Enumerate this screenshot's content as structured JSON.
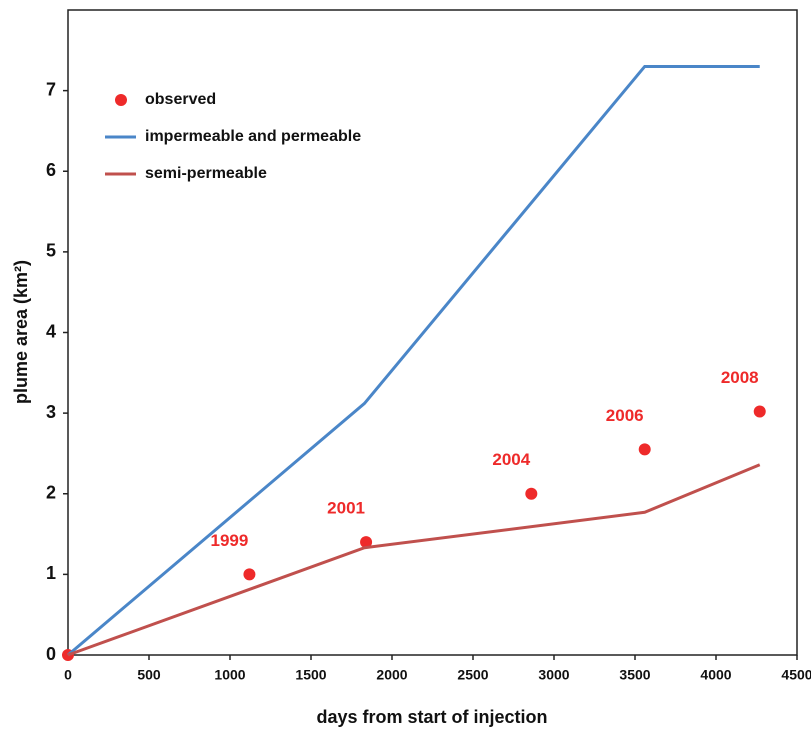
{
  "chart_data": {
    "type": "line",
    "xlabel": "days from start of injection",
    "ylabel": "plume area (km²)",
    "xlim": [
      0,
      4500
    ],
    "ylim": [
      0,
      8
    ],
    "xticks": [
      0,
      500,
      1000,
      1500,
      2000,
      2500,
      3000,
      3500,
      4000,
      {
        "value": 4500,
        "label": "4500"
      }
    ],
    "yticks": [
      0,
      1,
      2,
      3,
      4,
      5,
      6,
      7
    ],
    "legend": "upper left",
    "series": [
      {
        "name": "observed",
        "mode": "markers",
        "color": "#ee2a2a",
        "x": [
          0,
          1120,
          1840,
          2860,
          3560,
          4270
        ],
        "values": [
          0,
          1.0,
          1.4,
          2.0,
          2.55,
          3.02
        ],
        "point_labels": [
          null,
          "1999",
          "2001",
          "2004",
          "2006",
          "2008"
        ]
      },
      {
        "name": "impermeable and permeable",
        "mode": "lines",
        "color": "#4a86c8",
        "x": [
          0,
          1830,
          3560,
          4270
        ],
        "values": [
          0,
          3.12,
          7.3,
          7.3
        ]
      },
      {
        "name": "semi-permeable",
        "mode": "lines",
        "color": "#c0504d",
        "x": [
          0,
          1830,
          3560,
          4270
        ],
        "values": [
          0,
          1.33,
          1.77,
          2.36
        ]
      }
    ]
  }
}
